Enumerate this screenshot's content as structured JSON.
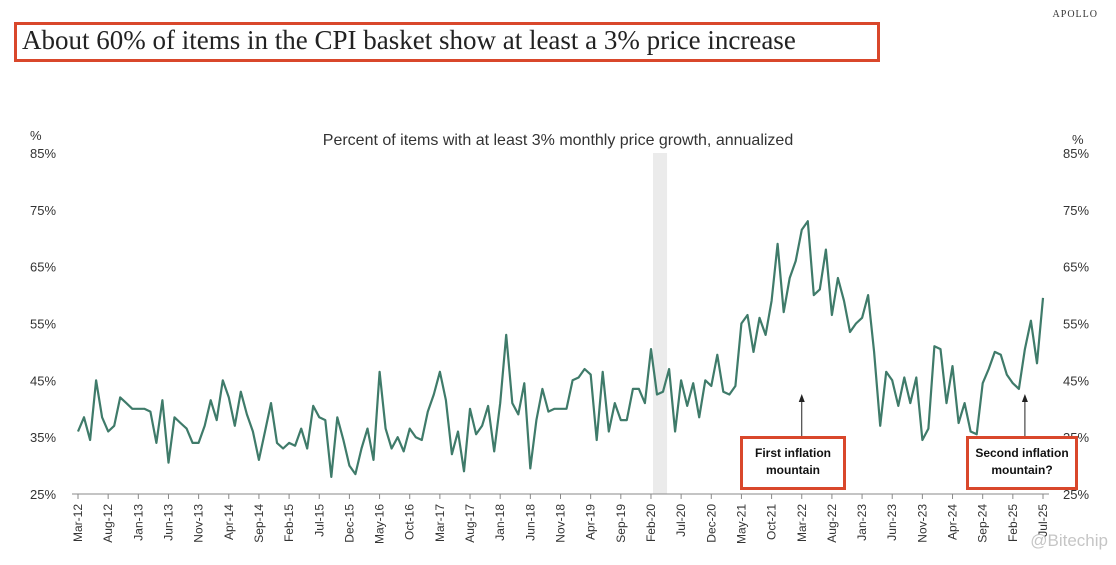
{
  "brand": "APOLLO",
  "headline": "About 60% of items in the CPI basket show at least a 3% price increase",
  "watermark": "@Bitechip",
  "colors": {
    "line": "#3f7b6a",
    "highlight": "#d9472b",
    "recession_shade": "#ebebeb"
  },
  "chart_data": {
    "type": "line",
    "title": "Percent of items with at least 3% monthly price growth, annualized",
    "ylabel_left": "%",
    "ylabel_right": "%",
    "ylim": [
      25,
      85
    ],
    "yticks": [
      "25%",
      "35%",
      "45%",
      "55%",
      "65%",
      "75%",
      "85%"
    ],
    "x_start": "Mar-12",
    "x_end": "Jul-25",
    "frequency": "monthly",
    "xtick_labels": [
      "Mar-12",
      "Aug-12",
      "Jan-13",
      "Jun-13",
      "Nov-13",
      "Apr-14",
      "Sep-14",
      "Feb-15",
      "Jul-15",
      "Dec-15",
      "May-16",
      "Oct-16",
      "Mar-17",
      "Aug-17",
      "Jan-18",
      "Jun-18",
      "Nov-18",
      "Apr-19",
      "Sep-19",
      "Feb-20",
      "Jul-20",
      "Dec-20",
      "May-21",
      "Oct-21",
      "Mar-22",
      "Aug-22",
      "Jan-23",
      "Jun-23",
      "Nov-23",
      "Apr-24",
      "Sep-24",
      "Feb-25",
      "Jul-25"
    ],
    "recession_shading": [
      "Mar-20",
      "Apr-20"
    ],
    "grid": false,
    "values": [
      36,
      38.5,
      34.5,
      45,
      38.5,
      36,
      37,
      42,
      41,
      40,
      40,
      40,
      39.5,
      34,
      41.5,
      30.5,
      38.5,
      37.5,
      36.5,
      34,
      34,
      37,
      41.5,
      38,
      45,
      42,
      37,
      43,
      39,
      36,
      31,
      36,
      41,
      34,
      33,
      34,
      33.5,
      36.5,
      33,
      40.5,
      38.5,
      38,
      28,
      38.5,
      34.5,
      30,
      28.5,
      33,
      36.5,
      31,
      46.5,
      36.5,
      33,
      35,
      32.5,
      36.5,
      35,
      34.5,
      39.5,
      42.5,
      46.5,
      41.5,
      32,
      36,
      29,
      40,
      35.5,
      37,
      40.5,
      32.5,
      41,
      53,
      41,
      39,
      44.5,
      29.5,
      38,
      43.5,
      39.5,
      40,
      40,
      40,
      45,
      45.5,
      47,
      46,
      34.5,
      46.5,
      36,
      41,
      38,
      38,
      43.5,
      43.5,
      41,
      50.5,
      42.5,
      43,
      47,
      36,
      45,
      40.5,
      44.5,
      38.5,
      45,
      44,
      49.5,
      43,
      42.5,
      44,
      55,
      56.5,
      50,
      56,
      53,
      59,
      69,
      57,
      63,
      66,
      71.5,
      73,
      60,
      61,
      68,
      56.5,
      63,
      59,
      53.5,
      55,
      56,
      60,
      50,
      37,
      46.5,
      45,
      40.5,
      45.5,
      41,
      45.5,
      34.5,
      36.5,
      51,
      50.5,
      41,
      47.5,
      37.5,
      41,
      36,
      35.5,
      44.5,
      47,
      50,
      49.5,
      46,
      44.5,
      43.5,
      50.5,
      55.5,
      48,
      59.5
    ],
    "annotations": [
      {
        "text_line1": "First inflation",
        "text_line2": "mountain",
        "points_to": "Mar-22"
      },
      {
        "text_line1": "Second inflation",
        "text_line2": "mountain?",
        "points_to": "Apr-25"
      }
    ]
  }
}
